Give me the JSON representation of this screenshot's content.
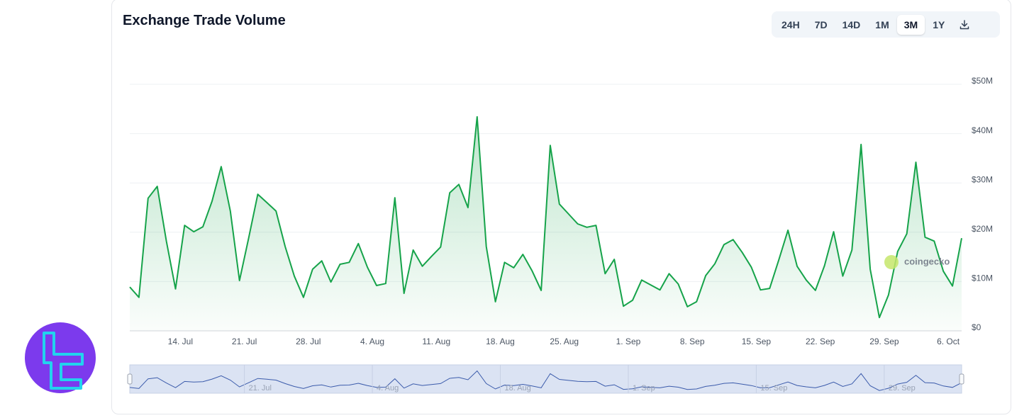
{
  "chart_data": {
    "type": "line",
    "title": "Exchange Trade Volume",
    "color": "#16a34a",
    "grid": true,
    "x": [
      "8. Jul",
      "9. Jul",
      "10. Jul",
      "11. Jul",
      "12. Jul",
      "13. Jul",
      "14. Jul",
      "15. Jul",
      "16. Jul",
      "17. Jul",
      "18. Jul",
      "19. Jul",
      "20. Jul",
      "21. Jul",
      "22. Jul",
      "23. Jul",
      "24. Jul",
      "25. Jul",
      "26. Jul",
      "27. Jul",
      "28. Jul",
      "29. Jul",
      "30. Jul",
      "31. Jul",
      "1. Aug",
      "2. Aug",
      "3. Aug",
      "4. Aug",
      "5. Aug",
      "6. Aug",
      "7. Aug",
      "8. Aug",
      "9. Aug",
      "10. Aug",
      "11. Aug",
      "12. Aug",
      "13. Aug",
      "14. Aug",
      "15. Aug",
      "16. Aug",
      "17. Aug",
      "18. Aug",
      "19. Aug",
      "20. Aug",
      "21. Aug",
      "22. Aug",
      "23. Aug",
      "24. Aug",
      "25. Aug",
      "26. Aug",
      "27. Aug",
      "28. Aug",
      "29. Aug",
      "30. Aug",
      "31. Aug",
      "1. Sep",
      "2. Sep",
      "3. Sep",
      "4. Sep",
      "5. Sep",
      "6. Sep",
      "7. Sep",
      "8. Sep",
      "9. Sep",
      "10. Sep",
      "11. Sep",
      "12. Sep",
      "13. Sep",
      "14. Sep",
      "15. Sep",
      "16. Sep",
      "17. Sep",
      "18. Sep",
      "19. Sep",
      "20. Sep",
      "21. Sep",
      "22. Sep",
      "23. Sep",
      "24. Sep",
      "25. Sep",
      "26. Sep",
      "27. Sep",
      "28. Sep",
      "29. Sep",
      "30. Sep",
      "1. Oct",
      "2. Oct",
      "3. Oct",
      "4. Oct",
      "5. Oct",
      "6. Oct",
      "7. Oct"
    ],
    "values": [
      8900000,
      6800000,
      26900000,
      29300000,
      18200000,
      8500000,
      21400000,
      20100000,
      21100000,
      26300000,
      33300000,
      24300000,
      10200000,
      18800000,
      27700000,
      26000000,
      24300000,
      17100000,
      11100000,
      6800000,
      12500000,
      14200000,
      9900000,
      13500000,
      13900000,
      17700000,
      12900000,
      9200000,
      9600000,
      27000000,
      7600000,
      16400000,
      13100000,
      15100000,
      17000000,
      28000000,
      29700000,
      25000000,
      43400000,
      17100000,
      5900000,
      13900000,
      12800000,
      15500000,
      12200000,
      8200000,
      37600000,
      25700000,
      23700000,
      21700000,
      21000000,
      21400000,
      11600000,
      14500000,
      5000000,
      6200000,
      10300000,
      9300000,
      8300000,
      11600000,
      9500000,
      4900000,
      5900000,
      11200000,
      13600000,
      17500000,
      18500000,
      15900000,
      12900000,
      8300000,
      8600000,
      14400000,
      20400000,
      13100000,
      10300000,
      8200000,
      13200000,
      20100000,
      11100000,
      16400000,
      37800000,
      12500000,
      2700000,
      7300000,
      16100000,
      19700000,
      34200000,
      19000000,
      18200000,
      12100000,
      9100000,
      18800000
    ],
    "ylim": [
      0,
      50000000
    ],
    "yticks": [
      {
        "value": 0,
        "label": "$0"
      },
      {
        "value": 10000000,
        "label": "$10M"
      },
      {
        "value": 20000000,
        "label": "$20M"
      },
      {
        "value": 30000000,
        "label": "$30M"
      },
      {
        "value": 40000000,
        "label": "$40M"
      },
      {
        "value": 50000000,
        "label": "$50M"
      }
    ],
    "xticks": [
      "14. Jul",
      "21. Jul",
      "28. Jul",
      "4. Aug",
      "11. Aug",
      "18. Aug",
      "25. Aug",
      "1. Sep",
      "8. Sep",
      "15. Sep",
      "22. Sep",
      "29. Sep",
      "6. Oct"
    ],
    "navigator_ticks": [
      "21. Jul",
      "4. Aug",
      "18. Aug",
      "1. Sep",
      "15. Sep",
      "29. Sep"
    ],
    "watermark": "coingecko"
  },
  "ranges": {
    "buttons": [
      "24H",
      "7D",
      "14D",
      "1M",
      "3M",
      "1Y"
    ],
    "active": "3M"
  }
}
